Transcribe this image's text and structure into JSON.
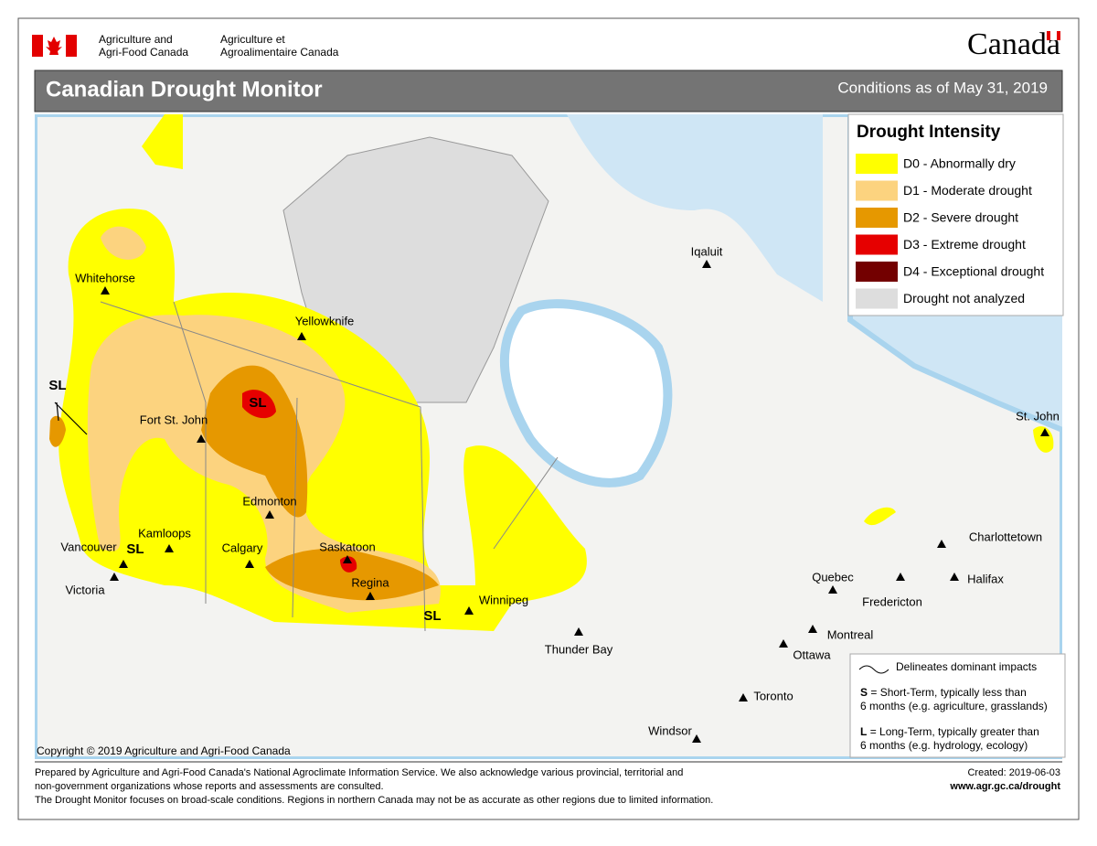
{
  "header": {
    "department_en": [
      "Agriculture and",
      "Agri-Food Canada"
    ],
    "department_fr": [
      "Agriculture et",
      "Agroalimentaire Canada"
    ],
    "wordmark": "Canada"
  },
  "title_bar": {
    "title": "Canadian Drought Monitor",
    "date": "Conditions as of May 31, 2019"
  },
  "legend": {
    "title": "Drought Intensity",
    "items": [
      {
        "label": "D0 - Abnormally dry",
        "color": "#ffff00"
      },
      {
        "label": "D1 - Moderate drought",
        "color": "#fcd37f"
      },
      {
        "label": "D2 - Severe drought",
        "color": "#e69800"
      },
      {
        "label": "D3 - Extreme drought",
        "color": "#e60000"
      },
      {
        "label": "D4 - Exceptional drought",
        "color": "#730000"
      },
      {
        "label": "Drought not analyzed",
        "color": "#dddddd"
      }
    ]
  },
  "cities": [
    "Whitehorse",
    "Yellowknife",
    "Fort St. John",
    "Edmonton",
    "Kamloops",
    "Vancouver",
    "Victoria",
    "Calgary",
    "Saskatoon",
    "Regina",
    "Winnipeg",
    "Thunder Bay",
    "Iqaluit",
    "St. John",
    "Charlottetown",
    "Halifax",
    "Quebec",
    "Fredericton",
    "Montreal",
    "Ottawa",
    "Toronto",
    "Windsor"
  ],
  "impact_labels": [
    "SL",
    "SL",
    "SL",
    "SL"
  ],
  "notes": {
    "line": "Delineates dominant impacts",
    "short_term": {
      "key": "S",
      "text": [
        "= Short-Term, typically less than",
        "6 months (e.g. agriculture, grasslands)"
      ]
    },
    "long_term": {
      "key": "L",
      "text": [
        "= Long-Term, typically greater  than",
        "6 months (e.g. hydrology, ecology)"
      ]
    }
  },
  "copyright": "Copyright © 2019 Agriculture and Agri-Food Canada",
  "footer": {
    "lines": [
      "Prepared by Agriculture and Agri-Food Canada's National Agroclimate Information Service.  We also acknowledge various provincial, territorial and",
      "non-government organizations whose reports and assessments are consulted.",
      "The Drought Monitor focuses on broad-scale conditions.  Regions in northern Canada may not be as accurate as other regions due to limited information."
    ],
    "created": "Created: 2019-06-03",
    "url": "www.agr.gc.ca/drought"
  }
}
